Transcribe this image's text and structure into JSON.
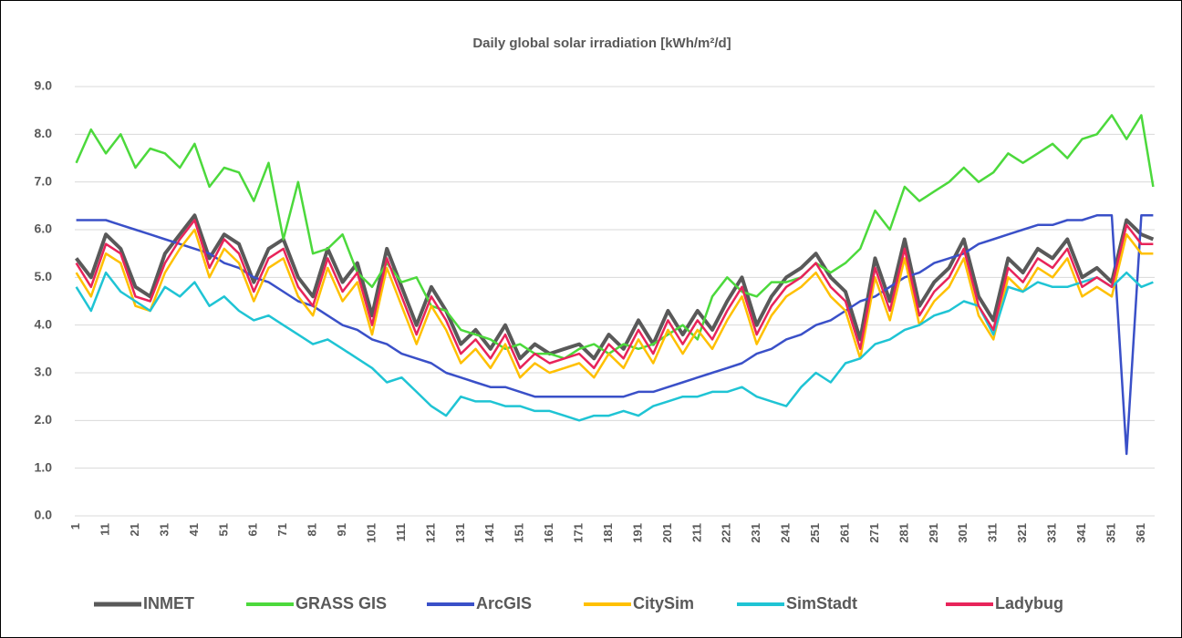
{
  "chart_data": {
    "type": "line",
    "title": "Daily global solar irradiation  [kWh/m²/d]",
    "x": [
      1,
      6,
      11,
      16,
      21,
      26,
      31,
      36,
      41,
      46,
      51,
      56,
      61,
      66,
      71,
      76,
      81,
      86,
      91,
      96,
      101,
      106,
      111,
      116,
      121,
      126,
      131,
      136,
      141,
      146,
      151,
      156,
      161,
      166,
      171,
      176,
      181,
      186,
      191,
      196,
      201,
      206,
      211,
      216,
      221,
      226,
      231,
      236,
      241,
      246,
      251,
      256,
      261,
      266,
      271,
      276,
      281,
      286,
      291,
      296,
      301,
      306,
      311,
      316,
      321,
      326,
      331,
      336,
      341,
      346,
      351,
      356,
      361,
      365
    ],
    "series": [
      {
        "name": "INMET",
        "color": "#595959",
        "values": [
          5.4,
          5.0,
          5.9,
          5.6,
          4.8,
          4.6,
          5.5,
          5.9,
          6.3,
          5.4,
          5.9,
          5.7,
          4.9,
          5.6,
          5.8,
          5.0,
          4.6,
          5.6,
          4.9,
          5.3,
          4.2,
          5.6,
          4.8,
          4.0,
          4.8,
          4.3,
          3.6,
          3.9,
          3.5,
          4.0,
          3.3,
          3.6,
          3.4,
          3.5,
          3.6,
          3.3,
          3.8,
          3.5,
          4.1,
          3.6,
          4.3,
          3.8,
          4.3,
          3.9,
          4.5,
          5.0,
          4.0,
          4.6,
          5.0,
          5.2,
          5.5,
          5.0,
          4.7,
          3.7,
          5.4,
          4.5,
          5.8,
          4.4,
          4.9,
          5.2,
          5.8,
          4.6,
          4.1,
          5.4,
          5.1,
          5.6,
          5.4,
          5.8,
          5.0,
          5.2,
          4.9,
          6.2,
          5.9,
          5.8
        ]
      },
      {
        "name": "GRASS GIS",
        "color": "#4cd93c",
        "values": [
          7.4,
          8.1,
          7.6,
          8.0,
          7.3,
          7.7,
          7.6,
          7.3,
          7.8,
          6.9,
          7.3,
          7.2,
          6.6,
          7.4,
          5.8,
          7.0,
          5.5,
          5.6,
          5.9,
          5.1,
          4.8,
          5.3,
          4.9,
          5.0,
          4.4,
          4.3,
          3.9,
          3.8,
          3.7,
          3.5,
          3.6,
          3.4,
          3.4,
          3.3,
          3.5,
          3.6,
          3.4,
          3.6,
          3.5,
          3.6,
          3.8,
          4.0,
          3.7,
          4.6,
          5.0,
          4.7,
          4.6,
          4.9,
          4.9,
          5.0,
          5.3,
          5.1,
          5.3,
          5.6,
          6.4,
          6.0,
          6.9,
          6.6,
          6.8,
          7.0,
          7.3,
          7.0,
          7.2,
          7.6,
          7.4,
          7.6,
          7.8,
          7.5,
          7.9,
          8.0,
          8.4,
          7.9,
          8.4,
          6.9
        ]
      },
      {
        "name": "ArcGIS",
        "color": "#3a50c8",
        "values": [
          6.2,
          6.2,
          6.2,
          6.1,
          6.0,
          5.9,
          5.8,
          5.7,
          5.6,
          5.5,
          5.3,
          5.2,
          5.0,
          4.9,
          4.7,
          4.5,
          4.4,
          4.2,
          4.0,
          3.9,
          3.7,
          3.6,
          3.4,
          3.3,
          3.2,
          3.0,
          2.9,
          2.8,
          2.7,
          2.7,
          2.6,
          2.5,
          2.5,
          2.5,
          2.5,
          2.5,
          2.5,
          2.5,
          2.6,
          2.6,
          2.7,
          2.8,
          2.9,
          3.0,
          3.1,
          3.2,
          3.4,
          3.5,
          3.7,
          3.8,
          4.0,
          4.1,
          4.3,
          4.5,
          4.6,
          4.8,
          5.0,
          5.1,
          5.3,
          5.4,
          5.5,
          5.7,
          5.8,
          5.9,
          6.0,
          6.1,
          6.1,
          6.2,
          6.2,
          6.3,
          6.3,
          1.3,
          6.3,
          6.3
        ]
      },
      {
        "name": "CitySim",
        "color": "#ffc000",
        "values": [
          5.1,
          4.6,
          5.5,
          5.3,
          4.4,
          4.3,
          5.1,
          5.6,
          6.0,
          5.0,
          5.6,
          5.3,
          4.5,
          5.2,
          5.4,
          4.6,
          4.2,
          5.2,
          4.5,
          4.9,
          3.8,
          5.2,
          4.4,
          3.6,
          4.4,
          3.9,
          3.2,
          3.5,
          3.1,
          3.6,
          2.9,
          3.2,
          3.0,
          3.1,
          3.2,
          2.9,
          3.4,
          3.1,
          3.7,
          3.2,
          3.9,
          3.4,
          3.9,
          3.5,
          4.1,
          4.6,
          3.6,
          4.2,
          4.6,
          4.8,
          5.1,
          4.6,
          4.3,
          3.3,
          5.0,
          4.1,
          5.4,
          4.0,
          4.5,
          4.8,
          5.4,
          4.2,
          3.7,
          5.0,
          4.7,
          5.2,
          5.0,
          5.4,
          4.6,
          4.8,
          4.6,
          5.9,
          5.5,
          5.5
        ]
      },
      {
        "name": "SimStadt",
        "color": "#1fc4d4",
        "values": [
          4.8,
          4.3,
          5.1,
          4.7,
          4.5,
          4.3,
          4.8,
          4.6,
          4.9,
          4.4,
          4.6,
          4.3,
          4.1,
          4.2,
          4.0,
          3.8,
          3.6,
          3.7,
          3.5,
          3.3,
          3.1,
          2.8,
          2.9,
          2.6,
          2.3,
          2.1,
          2.5,
          2.4,
          2.4,
          2.3,
          2.3,
          2.2,
          2.2,
          2.1,
          2.0,
          2.1,
          2.1,
          2.2,
          2.1,
          2.3,
          2.4,
          2.5,
          2.5,
          2.6,
          2.6,
          2.7,
          2.5,
          2.4,
          2.3,
          2.7,
          3.0,
          2.8,
          3.2,
          3.3,
          3.6,
          3.7,
          3.9,
          4.0,
          4.2,
          4.3,
          4.5,
          4.4,
          3.8,
          4.8,
          4.7,
          4.9,
          4.8,
          4.8,
          4.9,
          5.0,
          4.8,
          5.1,
          4.8,
          4.9
        ]
      },
      {
        "name": "Ladybug",
        "color": "#e8245a",
        "values": [
          5.3,
          4.8,
          5.7,
          5.5,
          4.6,
          4.5,
          5.3,
          5.8,
          6.2,
          5.2,
          5.8,
          5.5,
          4.7,
          5.4,
          5.6,
          4.8,
          4.4,
          5.4,
          4.7,
          5.1,
          4.0,
          5.4,
          4.6,
          3.8,
          4.6,
          4.1,
          3.4,
          3.7,
          3.3,
          3.8,
          3.1,
          3.4,
          3.2,
          3.3,
          3.4,
          3.1,
          3.6,
          3.3,
          3.9,
          3.4,
          4.1,
          3.6,
          4.1,
          3.7,
          4.3,
          4.8,
          3.8,
          4.4,
          4.8,
          5.0,
          5.3,
          4.8,
          4.5,
          3.5,
          5.2,
          4.3,
          5.6,
          4.2,
          4.7,
          5.0,
          5.6,
          4.4,
          3.9,
          5.2,
          4.9,
          5.4,
          5.2,
          5.6,
          4.8,
          5.0,
          4.8,
          6.1,
          5.7,
          5.7
        ]
      }
    ],
    "xlim": [
      0.5,
      365.5
    ],
    "xticks": [
      1,
      11,
      21,
      31,
      41,
      51,
      61,
      71,
      81,
      91,
      101,
      111,
      121,
      131,
      141,
      151,
      161,
      171,
      181,
      191,
      201,
      211,
      221,
      231,
      241,
      251,
      261,
      271,
      281,
      291,
      301,
      311,
      321,
      331,
      341,
      351,
      361
    ],
    "ylim": [
      0,
      9
    ],
    "yticks": [
      {
        "value": 0,
        "label": "0.0"
      },
      {
        "value": 1,
        "label": "1.0"
      },
      {
        "value": 2,
        "label": "2.0"
      },
      {
        "value": 3,
        "label": "3.0"
      },
      {
        "value": 4,
        "label": "4.0"
      },
      {
        "value": 5,
        "label": "5.0"
      },
      {
        "value": 6,
        "label": "6.0"
      },
      {
        "value": 7,
        "label": "7.0"
      },
      {
        "value": 8,
        "label": "8.0"
      },
      {
        "value": 9,
        "label": "9.0"
      }
    ],
    "grid": true,
    "legend": "bottom"
  }
}
